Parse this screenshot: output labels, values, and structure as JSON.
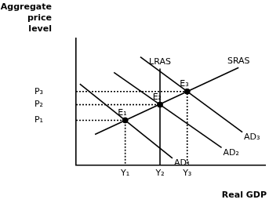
{
  "chart_data": {
    "type": "line",
    "xlabel": "Real GDP",
    "ylabel": "Aggregate price level",
    "xlim": [
      0,
      10
    ],
    "ylim": [
      0,
      10
    ],
    "xticks": [
      {
        "value": 2.6,
        "label": "Y₁"
      },
      {
        "value": 4.44,
        "label": "Y₂"
      },
      {
        "value": 5.88,
        "label": "Y₃"
      }
    ],
    "yticks": [
      {
        "value": 3.52,
        "label": "P₁"
      },
      {
        "value": 4.75,
        "label": "P₂"
      },
      {
        "value": 5.79,
        "label": "P₃"
      }
    ],
    "grid": false,
    "series": [
      {
        "name": "LRAS",
        "color": "#000000",
        "values": [
          [
            4.44,
            0
          ],
          [
            4.44,
            7.6
          ]
        ]
      },
      {
        "name": "SRAS",
        "color": "#000000",
        "values": [
          [
            1.0,
            2.41
          ],
          [
            8.6,
            7.67
          ]
        ]
      },
      {
        "name": "AD₁",
        "color": "#000000",
        "values": [
          [
            0.2,
            6.39
          ],
          [
            5.1,
            0.53
          ]
        ]
      },
      {
        "name": "AD₂",
        "color": "#000000",
        "values": [
          [
            2.0,
            7.29
          ],
          [
            7.7,
            1.36
          ]
        ]
      },
      {
        "name": "AD₃",
        "color": "#000000",
        "values": [
          [
            3.4,
            8.52
          ],
          [
            8.8,
            2.58
          ]
        ]
      },
      {
        "color": "#000000",
        "line_style": "dotted",
        "values": [
          [
            0,
            3.52
          ],
          [
            2.6,
            3.52
          ],
          [
            2.6,
            0
          ]
        ]
      },
      {
        "color": "#000000",
        "line_style": "dotted",
        "values": [
          [
            0,
            4.75
          ],
          [
            4.44,
            4.75
          ]
        ]
      },
      {
        "color": "#000000",
        "line_style": "dotted",
        "values": [
          [
            0,
            5.79
          ],
          [
            5.88,
            5.79
          ],
          [
            5.88,
            0
          ]
        ]
      },
      {
        "type": "scatter",
        "marker": "circle",
        "color": "#000000",
        "values": [
          [
            2.6,
            3.52
          ],
          [
            4.44,
            4.75
          ],
          [
            5.88,
            5.79
          ]
        ],
        "labels": [
          "E₁",
          "E₂",
          "E₃"
        ]
      }
    ]
  }
}
